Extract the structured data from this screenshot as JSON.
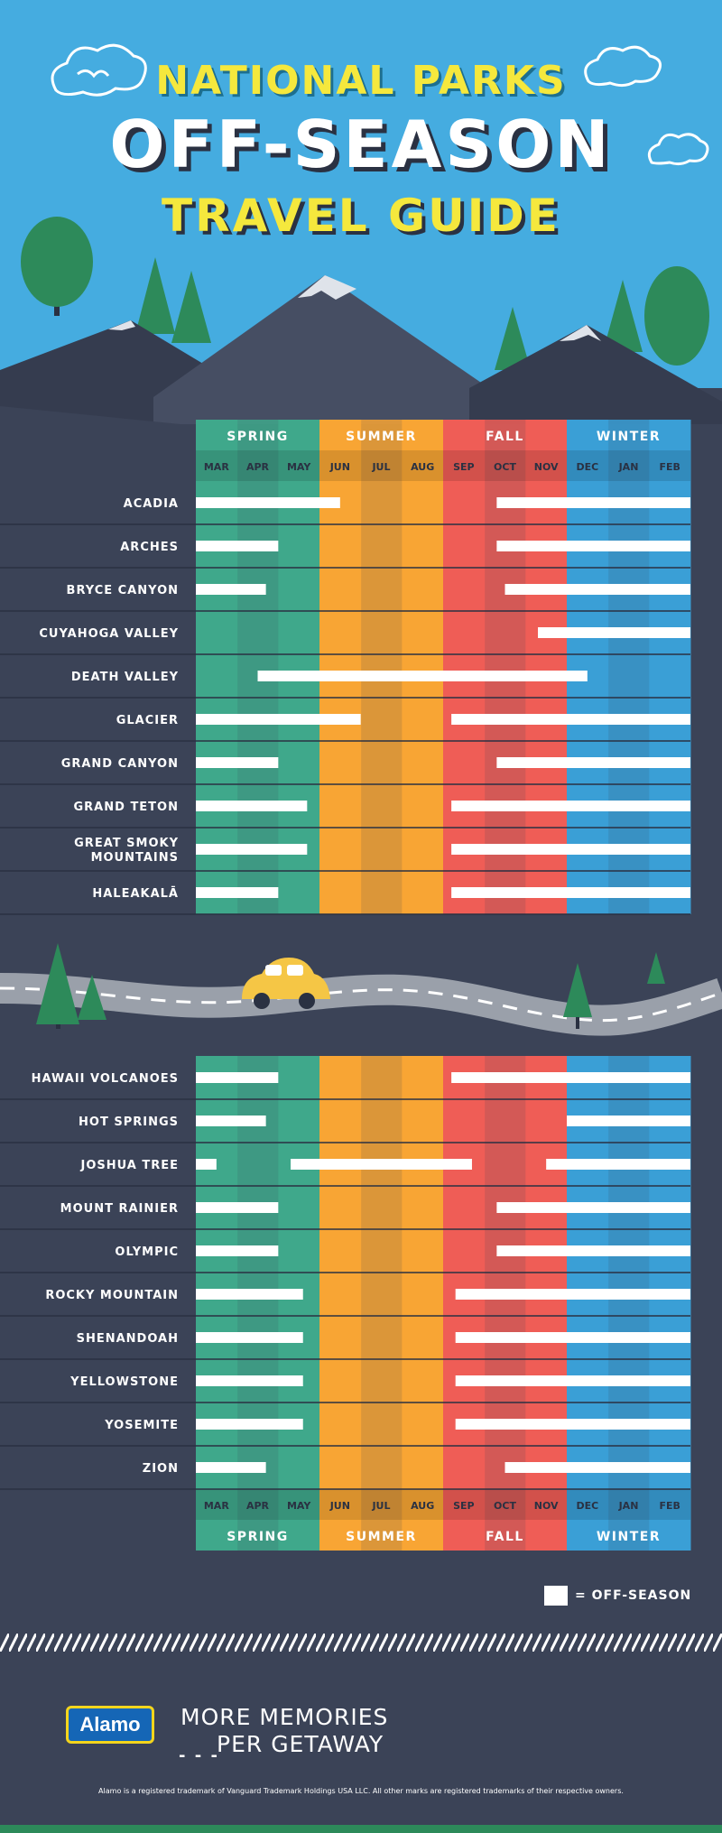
{
  "header": {
    "line1": "NATIONAL PARKS",
    "line2": "OFF-SEASON",
    "line3": "TRAVEL GUIDE"
  },
  "colors": {
    "sky": "#45ace0",
    "spring": "#3fa88b",
    "summer": "#f8a534",
    "fall": "#ef5d56",
    "winter": "#3a9fd6",
    "background": "#3b4357",
    "tree": "#2d8a5a",
    "car": "#f5c645"
  },
  "chart_data": [
    {
      "type": "gantt",
      "seasons": [
        "SPRING",
        "SUMMER",
        "FALL",
        "WINTER"
      ],
      "months": [
        "MAR",
        "APR",
        "MAY",
        "JUN",
        "JUL",
        "AUG",
        "SEP",
        "OCT",
        "NOV",
        "DEC",
        "JAN",
        "FEB"
      ],
      "legend": "= OFF-SEASON",
      "parks": [
        {
          "name": "ACADIA",
          "off_season": [
            [
              0,
              3.5
            ],
            [
              7.3,
              12
            ]
          ]
        },
        {
          "name": "ARCHES",
          "off_season": [
            [
              0,
              2
            ],
            [
              7.3,
              12
            ]
          ]
        },
        {
          "name": "BRYCE CANYON",
          "off_season": [
            [
              0,
              1.7
            ],
            [
              7.5,
              12
            ]
          ]
        },
        {
          "name": "CUYAHOGA VALLEY",
          "off_season": [
            [
              8.3,
              12
            ]
          ]
        },
        {
          "name": "DEATH VALLEY",
          "off_season": [
            [
              1.5,
              9.5
            ]
          ]
        },
        {
          "name": "GLACIER",
          "off_season": [
            [
              0,
              4
            ],
            [
              6.2,
              12
            ]
          ]
        },
        {
          "name": "GRAND CANYON",
          "off_season": [
            [
              0,
              2
            ],
            [
              7.3,
              12
            ]
          ]
        },
        {
          "name": "GRAND TETON",
          "off_season": [
            [
              0,
              2.7
            ],
            [
              6.2,
              12
            ]
          ]
        },
        {
          "name": "GREAT SMOKY MOUNTAINS",
          "off_season": [
            [
              0,
              2.7
            ],
            [
              6.2,
              12
            ]
          ]
        },
        {
          "name": "HALEAKALĀ",
          "off_season": [
            [
              0,
              2
            ],
            [
              6.2,
              12
            ]
          ]
        }
      ]
    },
    {
      "type": "gantt",
      "seasons": [
        "SPRING",
        "SUMMER",
        "FALL",
        "WINTER"
      ],
      "months": [
        "MAR",
        "APR",
        "MAY",
        "JUN",
        "JUL",
        "AUG",
        "SEP",
        "OCT",
        "NOV",
        "DEC",
        "JAN",
        "FEB"
      ],
      "parks": [
        {
          "name": "HAWAII VOLCANOES",
          "off_season": [
            [
              0,
              2
            ],
            [
              6.2,
              12
            ]
          ]
        },
        {
          "name": "HOT SPRINGS",
          "off_season": [
            [
              0,
              1.7
            ],
            [
              9,
              12
            ]
          ]
        },
        {
          "name": "JOSHUA TREE",
          "off_season": [
            [
              0,
              0.5
            ],
            [
              2.3,
              6.7
            ],
            [
              8.5,
              12
            ]
          ]
        },
        {
          "name": "MOUNT RAINIER",
          "off_season": [
            [
              0,
              2
            ],
            [
              7.3,
              12
            ]
          ]
        },
        {
          "name": "OLYMPIC",
          "off_season": [
            [
              0,
              2
            ],
            [
              7.3,
              12
            ]
          ]
        },
        {
          "name": "ROCKY MOUNTAIN",
          "off_season": [
            [
              0,
              2.6
            ],
            [
              6.3,
              12
            ]
          ]
        },
        {
          "name": "SHENANDOAH",
          "off_season": [
            [
              0,
              2.6
            ],
            [
              6.3,
              12
            ]
          ]
        },
        {
          "name": "YELLOWSTONE",
          "off_season": [
            [
              0,
              2.6
            ],
            [
              6.3,
              12
            ]
          ]
        },
        {
          "name": "YOSEMITE",
          "off_season": [
            [
              0,
              2.6
            ],
            [
              6.3,
              12
            ]
          ]
        },
        {
          "name": "ZION",
          "off_season": [
            [
              0,
              1.7
            ],
            [
              7.5,
              12
            ]
          ]
        }
      ]
    }
  ],
  "footer": {
    "logo": "Alamo",
    "tagline_line1": "MORE MEMORIES",
    "tagline_line2": "PER GETAWAY",
    "tagline_dashes": "- - -",
    "legal": "Alamo is a registered trademark of Vanguard Trademark Holdings USA LLC.  All other marks are registered trademarks of their respective owners."
  }
}
